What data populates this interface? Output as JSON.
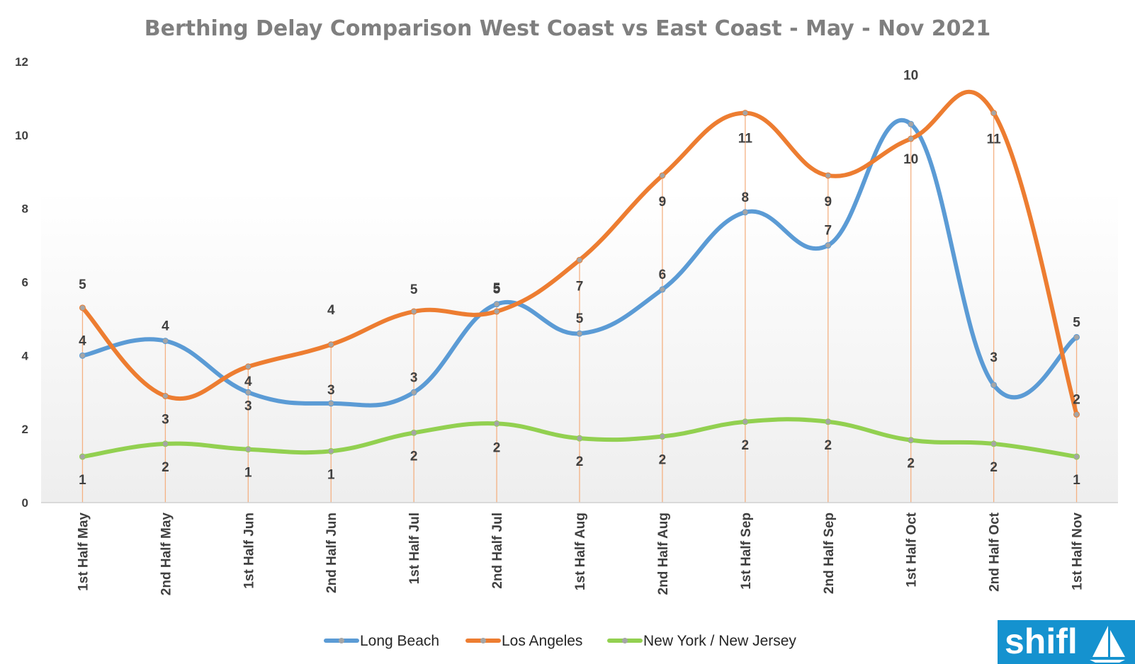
{
  "chart_data": {
    "type": "line",
    "title": "Berthing Delay Comparison West Coast vs East Coast - May - Nov 2021",
    "xlabel": "",
    "ylabel": "",
    "ylim": [
      0,
      12
    ],
    "yticks": [
      "0",
      "2",
      "4",
      "6",
      "8",
      "10",
      "12"
    ],
    "categories": [
      "1st Half May",
      "2nd Half May",
      "1st Half Jun",
      "2nd Half Jun",
      "1st Half Jul",
      "2nd Half Jul",
      "1st Half Aug",
      "2nd Half Aug",
      "1st Half Sep",
      "2nd Half Sep",
      "1st Half Oct",
      "2nd Half Oct",
      "1st Half Nov"
    ],
    "grid": false,
    "smooth": true,
    "legend": "bottom",
    "series": [
      {
        "name": "Long Beach",
        "color": "#5b9bd5",
        "values": [
          4.0,
          4.4,
          3.0,
          2.7,
          3.0,
          5.4,
          4.6,
          5.8,
          7.9,
          7.0,
          10.3,
          3.2,
          4.5
        ],
        "labels": [
          "4",
          "4",
          "3",
          "3",
          "3",
          "5",
          "5",
          "6",
          "8",
          "7",
          "10",
          "3",
          "5"
        ]
      },
      {
        "name": "Los Angeles",
        "color": "#ed7d31",
        "values": [
          5.3,
          2.9,
          3.7,
          4.3,
          5.2,
          5.2,
          6.6,
          8.9,
          10.6,
          8.9,
          9.9,
          10.6,
          2.4
        ],
        "labels": [
          "5",
          "3",
          "4",
          "4",
          "5",
          "5",
          "7",
          "9",
          "11",
          "9",
          "10",
          "11",
          "2"
        ]
      },
      {
        "name": "New York / New Jersey",
        "color": "#92d050",
        "values": [
          1.25,
          1.6,
          1.45,
          1.4,
          1.9,
          2.15,
          1.75,
          1.8,
          2.2,
          2.2,
          1.7,
          1.6,
          1.25
        ],
        "labels": [
          "1",
          "2",
          "1",
          "1",
          "2",
          "2",
          "2",
          "2",
          "2",
          "2",
          "2",
          "2",
          "1"
        ]
      }
    ]
  },
  "logo": {
    "text": "shifl",
    "color": "#1592cf"
  }
}
